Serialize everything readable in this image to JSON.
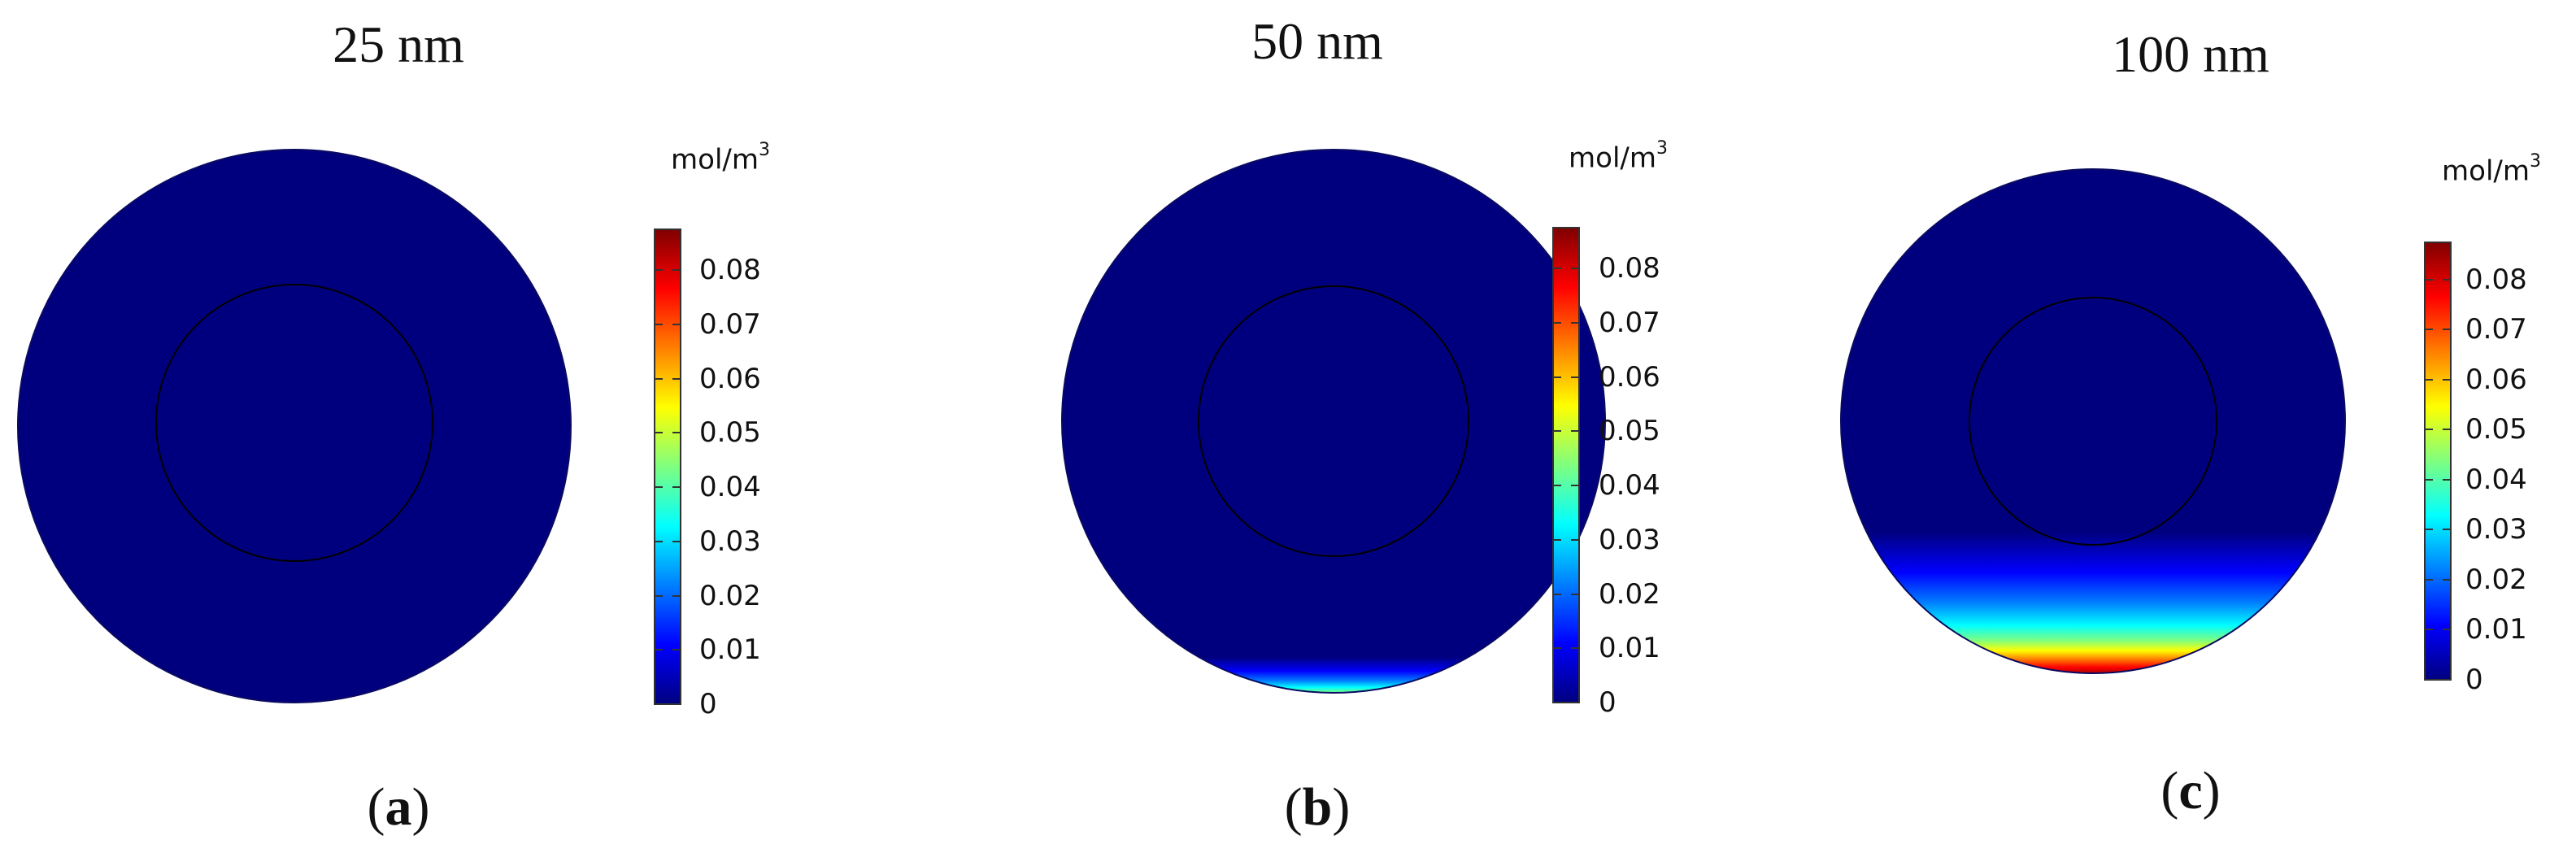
{
  "colors": {
    "background_level": "#00007f",
    "jet_scale": [
      "#00007f",
      "#0000ff",
      "#007fff",
      "#00ffff",
      "#7fff7f",
      "#ffff00",
      "#ff7f00",
      "#ff0000",
      "#7f0000"
    ],
    "boundary_line": "#000000"
  },
  "colorbar": {
    "unit_base": "mol/m",
    "unit_exponent": "3",
    "ticks": [
      "0.08",
      "0.07",
      "0.06",
      "0.05",
      "0.04",
      "0.03",
      "0.02",
      "0.01",
      "0"
    ],
    "tick_values": [
      0.08,
      0.07,
      0.06,
      0.05,
      0.04,
      0.03,
      0.02,
      0.01,
      0
    ],
    "min": 0,
    "max": 0.0875
  },
  "panels": [
    {
      "title": "25 nm",
      "caption_open": "(",
      "caption_letter": "a",
      "caption_close": ")",
      "bottom_band_fraction": 0.0
    },
    {
      "title": "50 nm",
      "caption_open": "(",
      "caption_letter": "b",
      "caption_close": ")",
      "bottom_band_fraction": 0.12
    },
    {
      "title": "100 nm",
      "caption_open": "(",
      "caption_letter": "c",
      "caption_close": ")",
      "bottom_band_fraction": 0.52
    }
  ]
}
